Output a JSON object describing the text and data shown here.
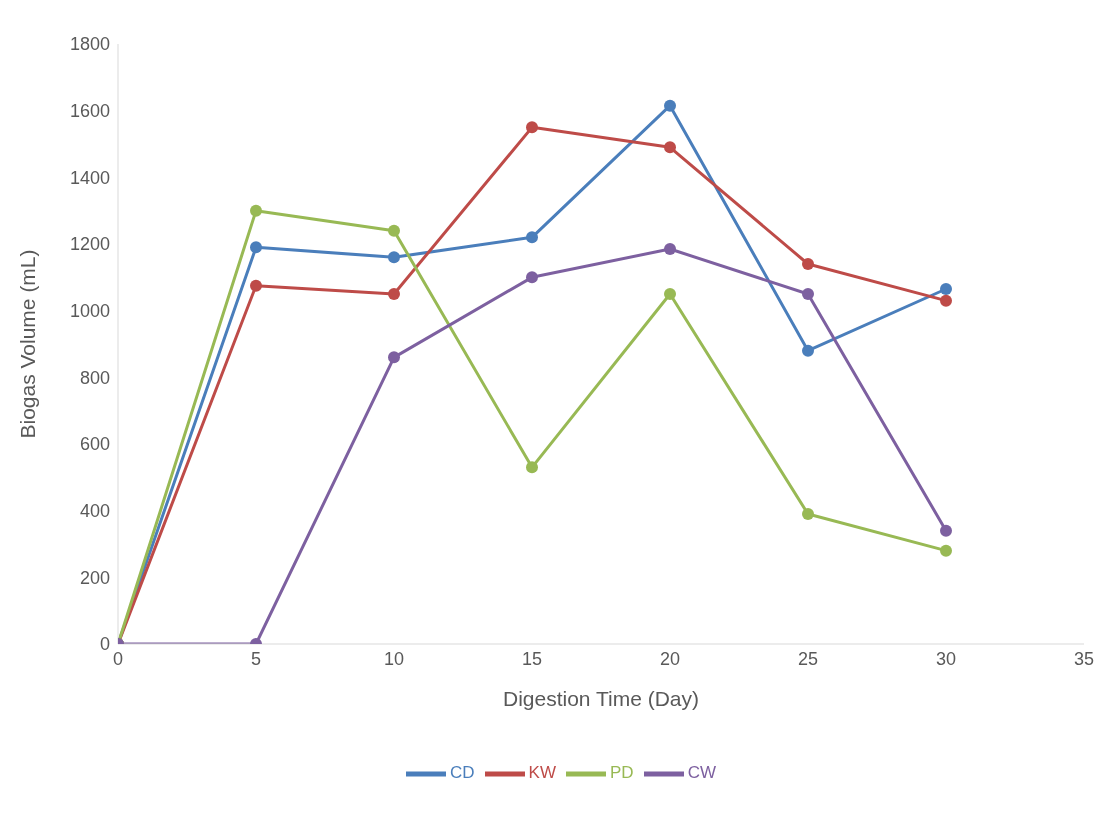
{
  "chart_data": {
    "type": "line",
    "xlabel": "Digestion Time (Day)",
    "ylabel": "Biogas Volume (mL)",
    "x": [
      0,
      5,
      10,
      15,
      20,
      25,
      30
    ],
    "series": [
      {
        "name": "CD",
        "color": "#4a7ebb",
        "values": [
          0,
          1190,
          1160,
          1220,
          1615,
          880,
          1065
        ]
      },
      {
        "name": "KW",
        "color": "#be4b48",
        "values": [
          0,
          1075,
          1050,
          1550,
          1490,
          1140,
          1030
        ]
      },
      {
        "name": "PD",
        "color": "#98b954",
        "values": [
          0,
          1300,
          1240,
          530,
          1050,
          390,
          280
        ]
      },
      {
        "name": "CW",
        "color": "#7d60a0",
        "values": [
          0,
          0,
          860,
          1100,
          1185,
          1050,
          340
        ]
      }
    ],
    "xlim": [
      0,
      35
    ],
    "xticks": [
      0,
      5,
      10,
      15,
      20,
      25,
      30,
      35
    ],
    "ylim": [
      0,
      1800
    ],
    "yticks": [
      0,
      200,
      400,
      600,
      800,
      1000,
      1200,
      1400,
      1600,
      1800
    ],
    "grid": false,
    "legend": "bottom",
    "marker": "circle",
    "line_style": "solid"
  }
}
